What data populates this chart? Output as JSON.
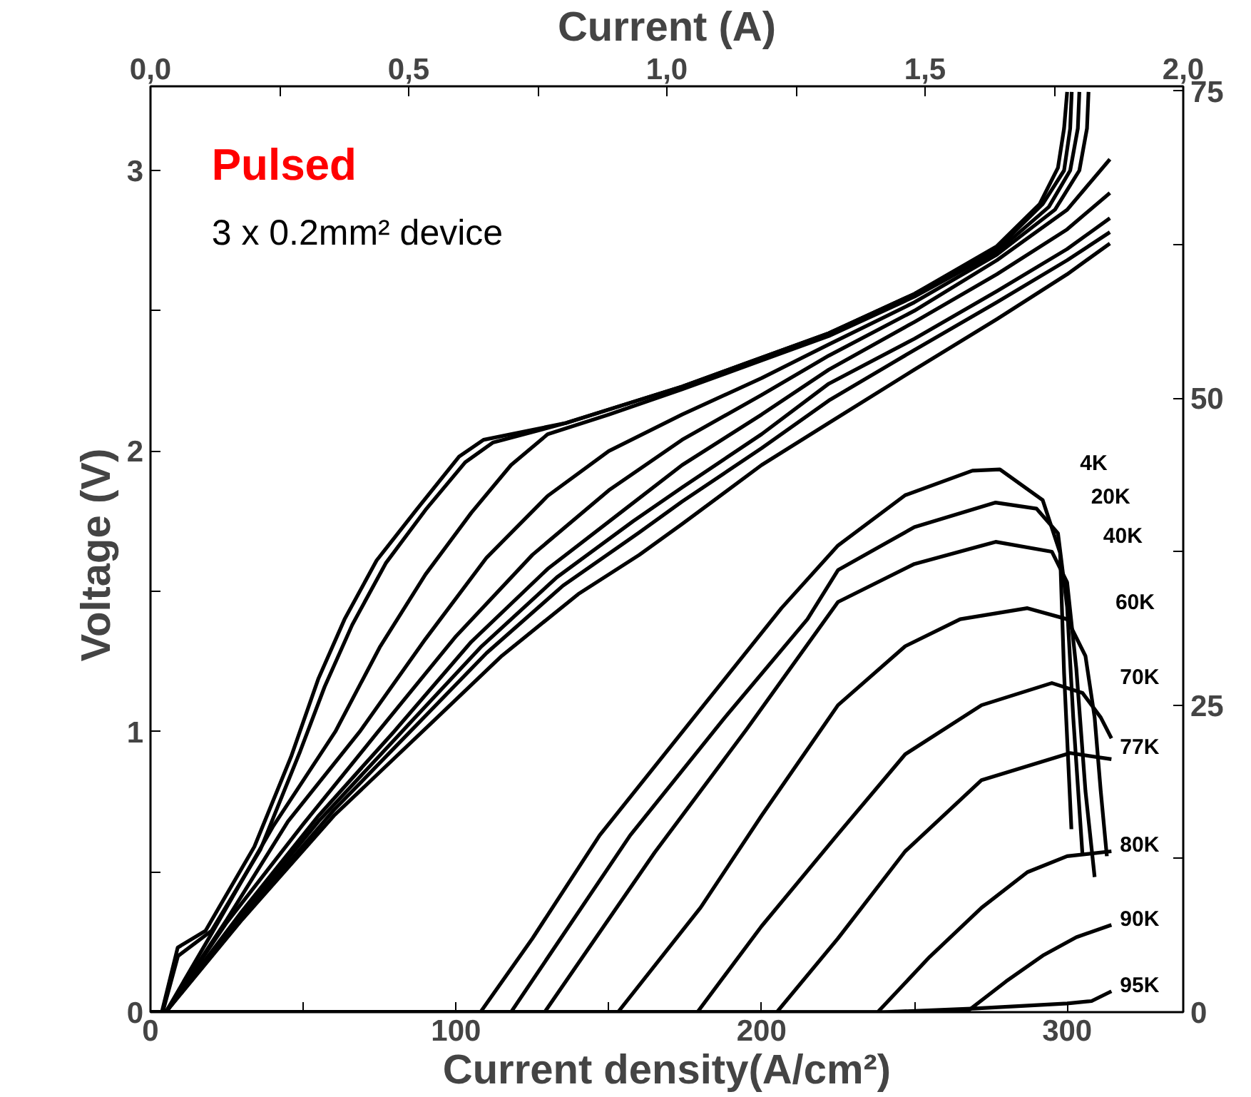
{
  "chart_data": {
    "type": "line",
    "xlabel": "Current density(A/cm²)",
    "ylabel": "Voltage  (V)",
    "x2label": "Current (A)",
    "xlim": [
      0,
      338
    ],
    "xticks": [
      0,
      {
        "value": 50,
        "label": null
      },
      100,
      {
        "value": 150,
        "label": null
      },
      200,
      {
        "value": 250,
        "label": null
      },
      300
    ],
    "x2lim": [
      0,
      2.0
    ],
    "x2ticks": [
      {
        "value": 0,
        "label": "0,0"
      },
      {
        "value": 0.25,
        "label": null
      },
      {
        "value": 0.5,
        "label": "0,5"
      },
      {
        "value": 0.75,
        "label": null
      },
      {
        "value": 1.0,
        "label": "1,0"
      },
      {
        "value": 1.25,
        "label": null
      },
      {
        "value": 1.5,
        "label": "1,5"
      },
      {
        "value": 1.75,
        "label": null
      },
      {
        "value": 2.0,
        "label": "2,0"
      }
    ],
    "ylim": [
      0,
      3.3
    ],
    "yticks": [
      0,
      {
        "value": 0.5,
        "label": null
      },
      1,
      {
        "value": 1.5,
        "label": null
      },
      2,
      {
        "value": 2.5,
        "label": null
      },
      3
    ],
    "y2lim": [
      0,
      75.4
    ],
    "y2ticks": [
      0,
      {
        "value": 12.5,
        "label": null
      },
      25,
      {
        "value": 37.5,
        "label": null
      },
      50,
      {
        "value": 62.5,
        "label": null
      },
      75
    ],
    "annotations": [
      "Pulsed",
      "3 x 0.2mm² device"
    ],
    "series": [
      {
        "color": "#000000",
        "x": [
          3.7,
          8.9,
          18,
          34,
          46,
          55,
          63.5,
          74,
          87,
          101,
          109,
          136,
          174,
          222,
          250,
          277,
          291,
          297,
          299,
          300
        ],
        "values": [
          0,
          0.23,
          0.29,
          0.59,
          0.91,
          1.19,
          1.4,
          1.61,
          1.79,
          1.98,
          2.04,
          2.1,
          2.23,
          2.42,
          2.56,
          2.73,
          2.88,
          3.01,
          3.15,
          3.28
        ]
      },
      {
        "color": "#000000",
        "x": [
          4,
          9,
          20,
          36,
          49,
          57,
          66,
          77,
          90,
          103,
          112,
          136,
          174,
          222,
          250,
          277,
          292,
          299,
          301,
          301.5
        ],
        "values": [
          0,
          0.2,
          0.29,
          0.58,
          0.93,
          1.16,
          1.38,
          1.6,
          1.79,
          1.96,
          2.03,
          2.1,
          2.23,
          2.42,
          2.56,
          2.72,
          2.88,
          3.0,
          3.15,
          3.28
        ]
      },
      {
        "color": "#000000",
        "x": [
          5,
          20,
          40,
          60.5,
          75,
          90,
          105,
          118,
          130,
          150,
          174,
          222,
          250,
          277,
          294,
          301,
          303.5,
          304
        ],
        "values": [
          0,
          0.28,
          0.66,
          1.0,
          1.3,
          1.56,
          1.78,
          1.95,
          2.06,
          2.13,
          2.22,
          2.41,
          2.55,
          2.71,
          2.87,
          3.0,
          3.15,
          3.28
        ]
      },
      {
        "color": "#000000",
        "x": [
          5,
          25,
          45,
          68.5,
          90,
          110,
          130,
          150,
          174,
          200,
          222,
          250,
          277,
          296,
          304,
          306.5,
          307
        ],
        "values": [
          0,
          0.33,
          0.68,
          1.0,
          1.33,
          1.62,
          1.84,
          2.0,
          2.13,
          2.26,
          2.38,
          2.53,
          2.7,
          2.86,
          3.0,
          3.15,
          3.28
        ]
      },
      {
        "color": "#000000",
        "x": [
          5,
          25,
          50,
          74.5,
          100,
          125,
          150,
          174,
          200,
          222,
          250,
          277,
          300,
          314
        ],
        "values": [
          0,
          0.32,
          0.67,
          1.0,
          1.34,
          1.63,
          1.86,
          2.04,
          2.2,
          2.34,
          2.5,
          2.68,
          2.86,
          3.04
        ]
      },
      {
        "color": "#000000",
        "x": [
          5,
          30,
          55,
          79.7,
          105,
          130,
          155,
          174,
          200,
          222,
          250,
          277,
          300,
          314
        ],
        "values": [
          0,
          0.36,
          0.7,
          1.0,
          1.32,
          1.58,
          1.79,
          1.95,
          2.13,
          2.29,
          2.46,
          2.63,
          2.79,
          2.92
        ]
      },
      {
        "color": "#000000",
        "x": [
          5,
          30,
          55,
          82.3,
          108,
          133,
          158,
          174,
          200,
          222,
          250,
          277,
          300,
          314
        ],
        "values": [
          0,
          0.35,
          0.68,
          1.0,
          1.3,
          1.55,
          1.75,
          1.87,
          2.06,
          2.24,
          2.4,
          2.57,
          2.72,
          2.83
        ]
      },
      {
        "color": "#000000",
        "x": [
          5,
          30,
          60,
          85,
          110,
          135,
          160,
          174,
          200,
          222,
          250,
          277,
          300,
          314
        ],
        "values": [
          0,
          0.34,
          0.72,
          1.0,
          1.28,
          1.52,
          1.71,
          1.82,
          2.01,
          2.18,
          2.36,
          2.53,
          2.68,
          2.78
        ]
      },
      {
        "color": "#000000",
        "x": [
          5,
          30,
          60,
          89,
          115,
          140,
          160,
          174,
          200,
          222,
          250,
          277,
          300,
          314
        ],
        "values": [
          0,
          0.33,
          0.7,
          1.0,
          1.27,
          1.49,
          1.63,
          1.74,
          1.95,
          2.1,
          2.29,
          2.47,
          2.63,
          2.74
        ]
      },
      {
        "name": "4K",
        "axis": "y2",
        "color": "#000000",
        "x": [
          0,
          108,
          125,
          147,
          178.5,
          206.5,
          225,
          247,
          269,
          278,
          292,
          297.7,
          299,
          301.4
        ],
        "values": [
          0,
          0,
          6,
          14.4,
          24.2,
          32.9,
          38,
          42.1,
          44.1,
          44.2,
          41.7,
          37.4,
          27.6,
          14.9
        ]
      },
      {
        "name": "20K",
        "axis": "y2",
        "color": "#000000",
        "x": [
          0,
          118,
          157,
          188,
          215,
          225,
          250,
          276.6,
          290,
          297,
          300,
          302,
          305
        ],
        "values": [
          0,
          0,
          14.4,
          24,
          32,
          36,
          39.5,
          41.5,
          41,
          39,
          33,
          24,
          12.9
        ]
      },
      {
        "name": "40K",
        "axis": "y2",
        "color": "#000000",
        "x": [
          0,
          129,
          165,
          195,
          225,
          250,
          276.6,
          295,
          300,
          303,
          306,
          309
        ],
        "values": [
          0,
          0,
          13,
          23,
          33.4,
          36.5,
          38.3,
          37.5,
          35,
          28,
          18,
          11
        ]
      },
      {
        "name": "60K",
        "axis": "y2",
        "color": "#000000",
        "x": [
          0,
          153,
          180,
          200,
          225,
          247,
          265,
          287,
          300,
          306,
          309,
          311,
          313
        ],
        "values": [
          0,
          0,
          8.5,
          16,
          25,
          29.8,
          32,
          32.9,
          32,
          29,
          24,
          18,
          12.7
        ]
      },
      {
        "name": "70K",
        "axis": "y2",
        "color": "#000000",
        "x": [
          0,
          179,
          200,
          225,
          247,
          272,
          295,
          305,
          311,
          314.5
        ],
        "values": [
          0,
          0,
          7,
          14.5,
          21,
          25,
          26.8,
          26,
          24,
          22.3
        ]
      },
      {
        "name": "77K",
        "axis": "y2",
        "color": "#000000",
        "x": [
          0,
          205,
          225,
          247,
          272,
          301,
          314.5
        ],
        "values": [
          0,
          0,
          6,
          13.1,
          18.9,
          21.1,
          20.6
        ]
      },
      {
        "name": "80K",
        "axis": "y2",
        "color": "#000000",
        "x": [
          0,
          238,
          255,
          272,
          287,
          300,
          314.5
        ],
        "values": [
          0,
          0,
          4.5,
          8.5,
          11.4,
          12.7,
          13.1
        ]
      },
      {
        "name": "90K",
        "axis": "y2",
        "color": "#000000",
        "x": [
          0,
          267,
          280,
          292,
          303,
          314.5
        ],
        "values": [
          0,
          0,
          2.5,
          4.6,
          6.1,
          7.1
        ]
      },
      {
        "name": "95K",
        "axis": "y2",
        "color": "#000000",
        "x": [
          0,
          240,
          270,
          300,
          308,
          314.5
        ],
        "values": [
          0,
          0,
          0.3,
          0.7,
          0.9,
          1.7
        ]
      }
    ]
  }
}
